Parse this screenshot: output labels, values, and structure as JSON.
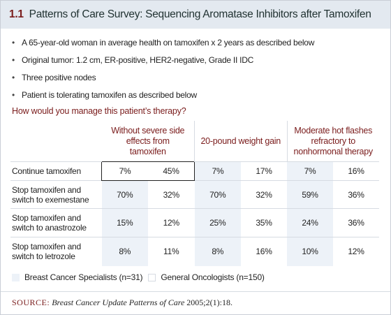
{
  "header": {
    "number": "1.1",
    "title": "Patterns of Care Survey: Sequencing Aromatase Inhibitors after Tamoxifen"
  },
  "bullets": [
    "A 65-year-old woman in average health on tamoxifen x 2 years as described below",
    "Original tumor: 1.2 cm, ER-positive, HER2-negative, Grade II IDC",
    "Three positive nodes",
    "Patient is tolerating tamoxifen as described below"
  ],
  "question": "How would you manage this patient’s therapy?",
  "table": {
    "column_groups": [
      "Without severe side effects from tamoxifen",
      "20-pound weight gain",
      "Moderate hot flashes refractory to nonhormonal therapy"
    ],
    "rows": [
      {
        "label": "Continue tamoxifen",
        "cells": [
          "7%",
          "45%",
          "7%",
          "17%",
          "7%",
          "16%"
        ]
      },
      {
        "label": "Stop tamoxifen and switch to exemestane",
        "cells": [
          "70%",
          "32%",
          "70%",
          "32%",
          "59%",
          "36%"
        ]
      },
      {
        "label": "Stop tamoxifen and switch to anastrozole",
        "cells": [
          "15%",
          "12%",
          "25%",
          "35%",
          "24%",
          "36%"
        ]
      },
      {
        "label": "Stop tamoxifen and switch to letrozole",
        "cells": [
          "8%",
          "11%",
          "8%",
          "16%",
          "10%",
          "12%"
        ]
      }
    ]
  },
  "legend": [
    "Breast Cancer Specialists (n=31)",
    "General Oncologists (n=150)"
  ],
  "source": {
    "label": "SOURCE:",
    "publication": "Breast Cancer Update Patterns of Care",
    "citation": "2005;2(1):18."
  }
}
